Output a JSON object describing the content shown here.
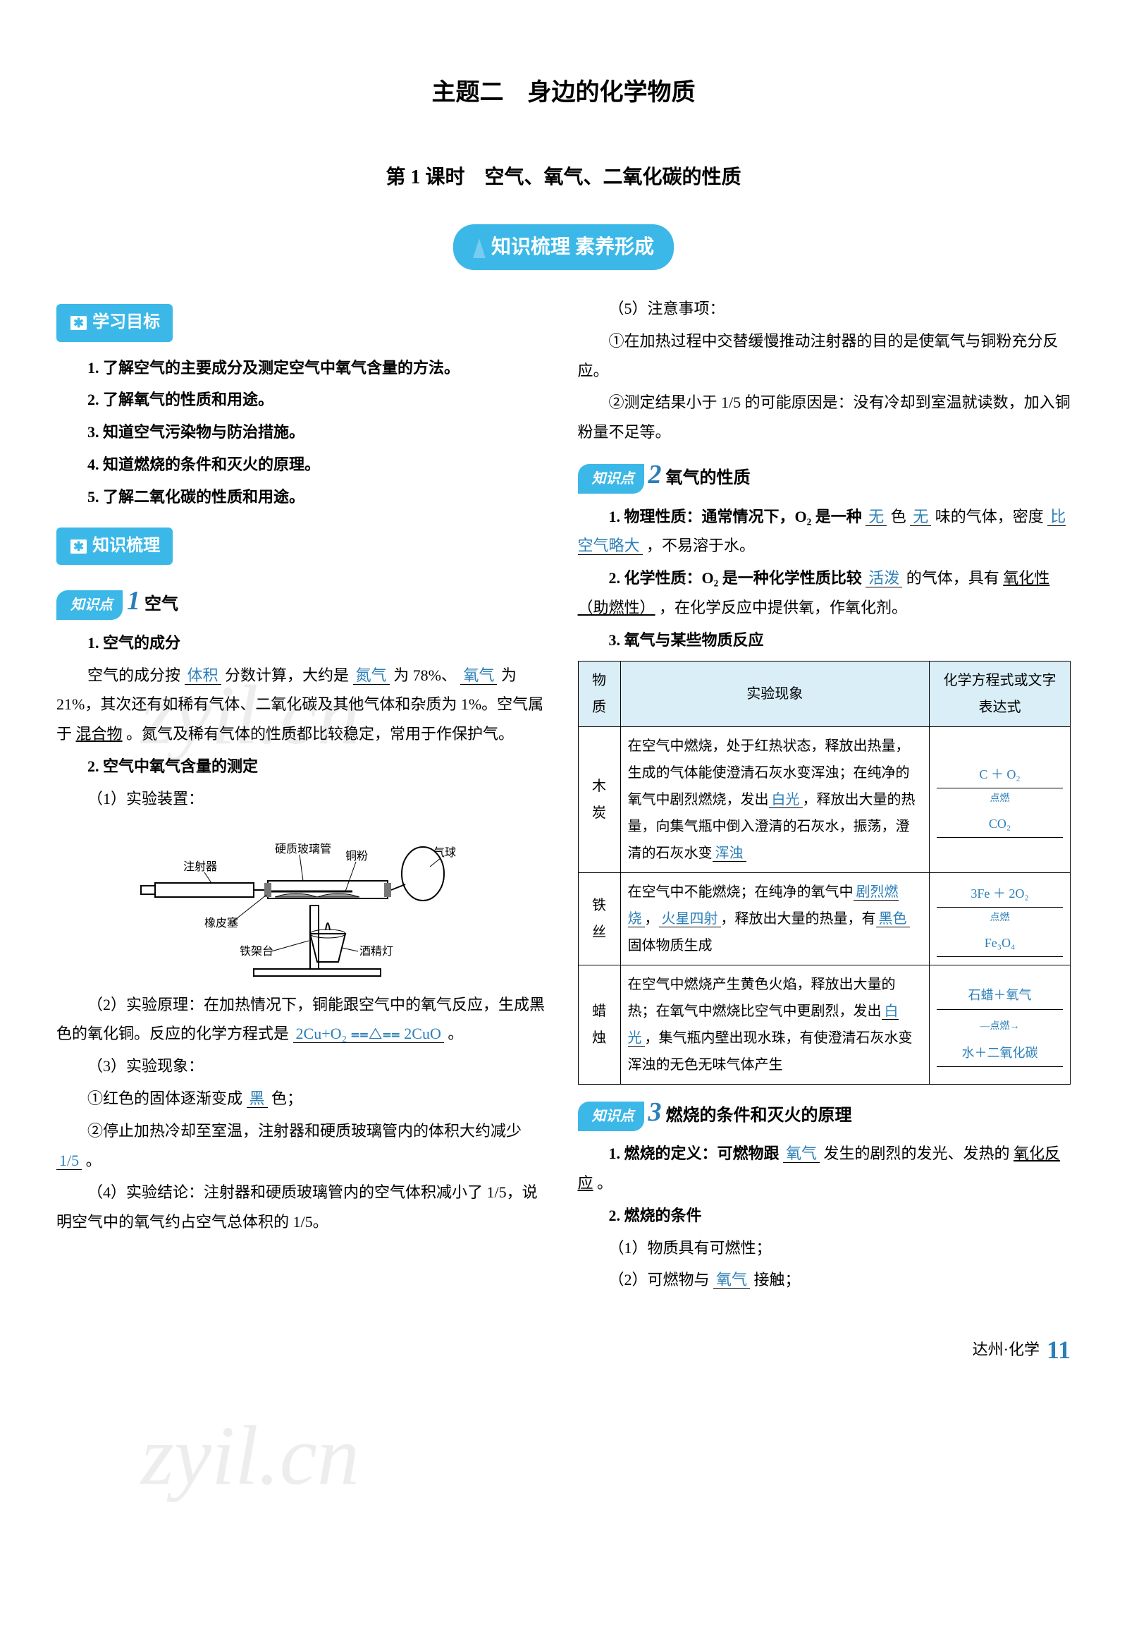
{
  "title": {
    "main": "主题二　身边的化学物质",
    "sub": "第 1 课时　空气、氧气、二氧化碳的性质"
  },
  "banner": "知识梳理 素养形成",
  "sections": {
    "goals_tag": "学习目标",
    "goals": [
      "1. 了解空气的主要成分及测定空气中氧气含量的方法。",
      "2. 了解氧气的性质和用途。",
      "3. 知道空气污染物与防治措施。",
      "4. 知道燃烧的条件和灭火的原理。",
      "5. 了解二氧化碳的性质和用途。"
    ],
    "comb_tag": "知识梳理"
  },
  "kp1": {
    "pill": "知识点",
    "num": "1",
    "title": "空气",
    "h1": "1. 空气的成分",
    "p1a": "空气的成分按",
    "p1_ans1": "体积",
    "p1b": "分数计算，大约是",
    "p1_ans2": "氮气",
    "p1c": "为 78%、",
    "p1_ans3": "氧气",
    "p1d": "为 21%，其次还有如稀有气体、二氧化碳及其他气体和杂质为 1%。空气属于",
    "p1e_u": "混合物",
    "p1f": "。氮气及稀有气体的性质都比较稳定，常用于作保护气。",
    "h2": "2. 空气中氧气含量的测定",
    "s1": "（1）实验装置：",
    "diagram_labels": {
      "syringe": "注射器",
      "glass_tube": "硬质玻璃管",
      "copper": "铜粉",
      "balloon": "气球",
      "rubber": "橡皮塞",
      "stand": "铁架台",
      "lamp": "酒精灯"
    },
    "s2a": "（2）实验原理：在加热情况下，铜能跟空气中的氧气反应，生成黑色的氧化铜。反应的化学方程式是",
    "s2_ans": "2Cu+O₂ ⩵△⩵ 2CuO",
    "s2b": "。",
    "s3": "（3）实验现象：",
    "s3_1a": "①红色的固体逐渐变成",
    "s3_1_ans": "黑",
    "s3_1b": "色；",
    "s3_2a": "②停止加热冷却至室温，注射器和硬质玻璃管内的体积大约减少",
    "s3_2_ans": "1/5",
    "s3_2b": "。",
    "s4": "（4）实验结论：注射器和硬质玻璃管内的空气体积减小了 1/5，说明空气中的氧气约占空气总体积的 1/5。",
    "s5": "（5）注意事项：",
    "s5_1": "①在加热过程中交替缓慢推动注射器的目的是使氧气与铜粉充分反应。",
    "s5_2": "②测定结果小于 1/5 的可能原因是：没有冷却到室温就读数，加入铜粉量不足等。"
  },
  "kp2": {
    "pill": "知识点",
    "num": "2",
    "title": "氧气的性质",
    "p1a": "1. 物理性质：通常情况下，O₂ 是一种",
    "p1_ans1": "无",
    "p1b": "色",
    "p1_ans2": "无",
    "p1c": "味的气体，密度",
    "p1_ans3": "比空气略大",
    "p1d": "，不易溶于水。",
    "p2a": "2. 化学性质：O₂ 是一种化学性质比较",
    "p2_ans": "活泼",
    "p2b": "的气体，具有",
    "p2c_u": "氧化性（助燃性）",
    "p2d": "，在化学反应中提供氧，作氧化剂。",
    "h3": "3. 氧气与某些物质反应",
    "table": {
      "headers": [
        "物质",
        "实验现象",
        "化学方程式或文字表达式"
      ],
      "rows": [
        {
          "material": "木炭",
          "desc_parts": [
            {
              "t": "在空气中燃烧，处于红热状态，释放出热量，生成的气体能使澄清石灰水变浑浊；在纯净的氧气中剧烈燃烧，发出"
            },
            {
              "a": "白光"
            },
            {
              "t": "，释放出大量的热量，向集气瓶中倒入澄清的石灰水，振荡，澄清的石灰水变"
            },
            {
              "a": "浑浊"
            }
          ],
          "eq_lines": [
            "C ＋ O₂",
            "CO₂"
          ],
          "eq_note": "点燃"
        },
        {
          "material": "铁丝",
          "desc_parts": [
            {
              "t": "在空气中不能燃烧；在纯净的氧气中"
            },
            {
              "a": "剧烈燃烧"
            },
            {
              "t": "，"
            },
            {
              "a": "火星四射"
            },
            {
              "t": "，释放出大量的热量，有"
            },
            {
              "a": "黑色"
            },
            {
              "t": "固体物质生成"
            }
          ],
          "eq_lines": [
            "3Fe ＋ 2O₂",
            "Fe₃O₄"
          ],
          "eq_note": "点燃"
        },
        {
          "material": "蜡烛",
          "desc_parts": [
            {
              "t": "在空气中燃烧产生黄色火焰，释放出大量的热；在氧气中燃烧比空气中更剧烈，发出"
            },
            {
              "a": "白光"
            },
            {
              "t": "，集气瓶内壁出现水珠，有使澄清石灰水变浑浊的无色无味气体产生"
            }
          ],
          "eq_lines": [
            "石蜡＋氧气",
            "水＋二氧化碳"
          ],
          "eq_note": "点燃",
          "eq_word": true
        }
      ]
    }
  },
  "kp3": {
    "pill": "知识点",
    "num": "3",
    "title": "燃烧的条件和灭火的原理",
    "p1a": "1. 燃烧的定义：可燃物跟",
    "p1_ans": "氧气",
    "p1b": "发生的剧烈的发光、发热的",
    "p1c_u": "氧化反应",
    "p1d": "。",
    "h2": "2. 燃烧的条件",
    "s1": "（1）物质具有可燃性；",
    "s2a": "（2）可燃物与",
    "s2_ans": "氧气",
    "s2b": "接触；"
  },
  "footer": {
    "region": "达州·化学",
    "page": "11"
  },
  "colors": {
    "accent": "#3bb8e8",
    "answer": "#2b7fb8",
    "bg": "#ffffff",
    "header_bg": "#d9eef7"
  }
}
